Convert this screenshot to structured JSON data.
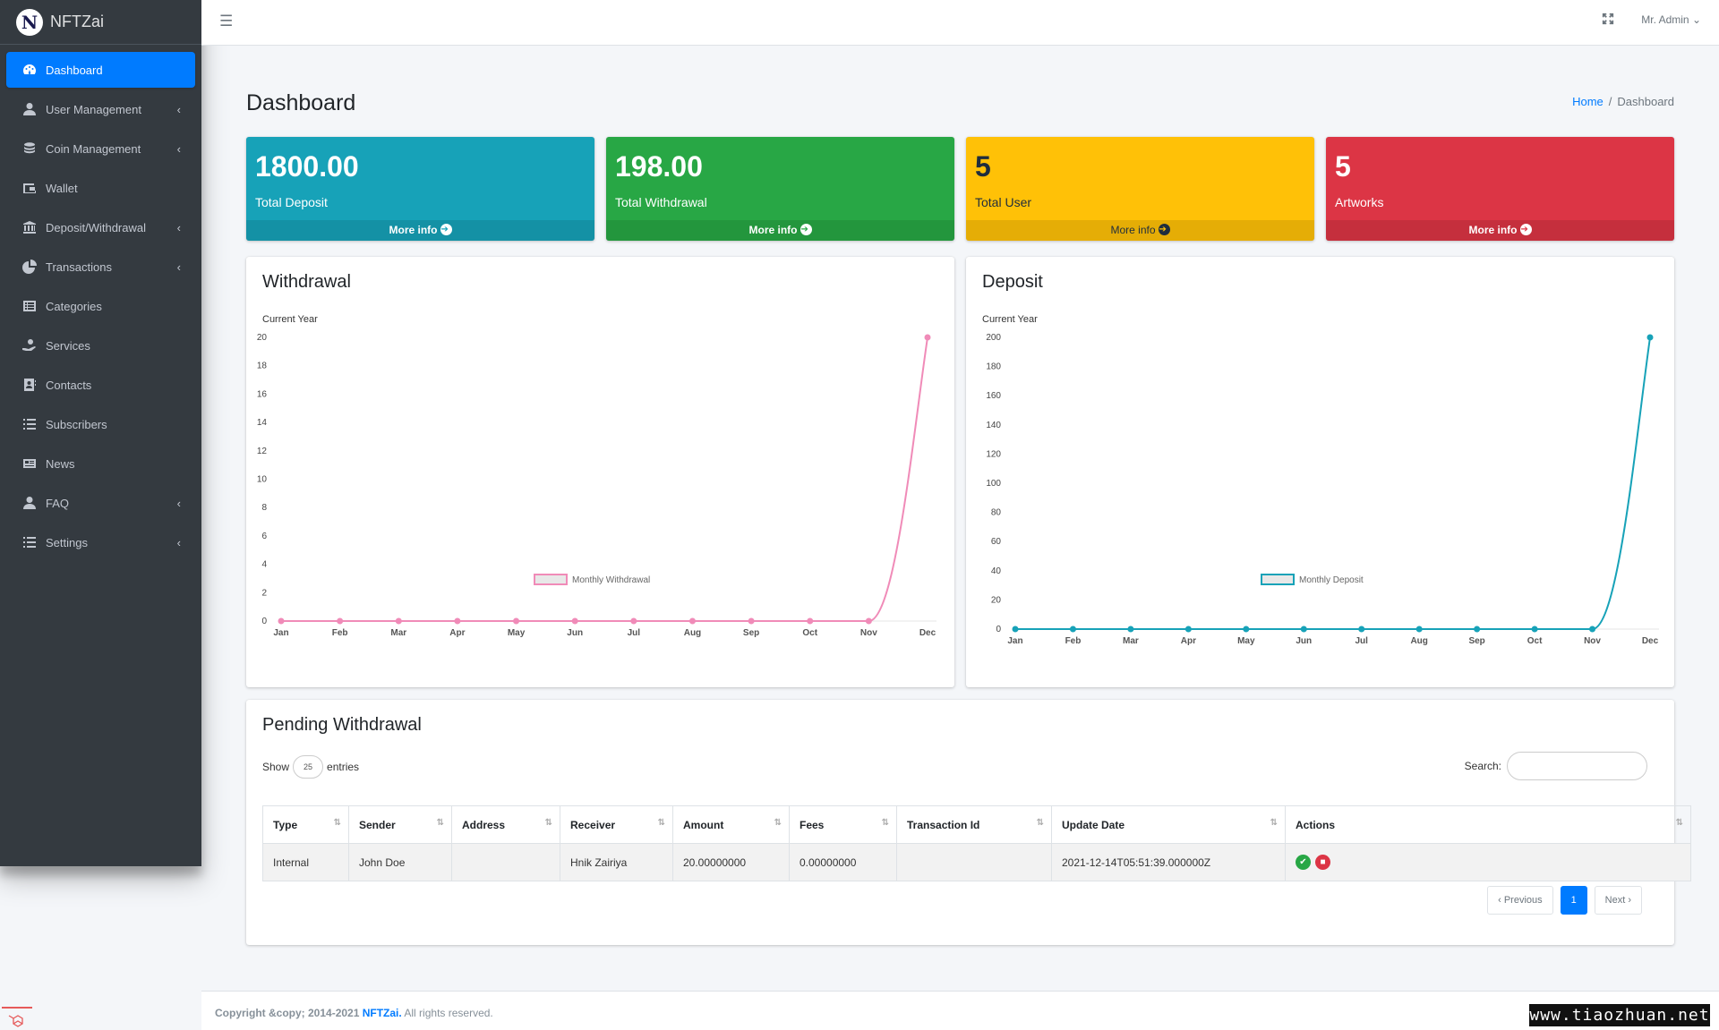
{
  "brand": {
    "name": "NFTZai",
    "logo_letter": "N"
  },
  "sidebar": {
    "items": [
      {
        "label": "Dashboard",
        "icon": "dashboard-icon",
        "active": true,
        "has_children": false
      },
      {
        "label": "User Management",
        "icon": "user-icon",
        "has_children": true
      },
      {
        "label": "Coin Management",
        "icon": "coins-icon",
        "has_children": true
      },
      {
        "label": "Wallet",
        "icon": "wallet-icon",
        "has_children": false
      },
      {
        "label": "Deposit/Withdrawal",
        "icon": "bank-icon",
        "has_children": true
      },
      {
        "label": "Transactions",
        "icon": "pie-chart-icon",
        "has_children": true
      },
      {
        "label": "Categories",
        "icon": "list-alt-icon",
        "has_children": false
      },
      {
        "label": "Services",
        "icon": "hand-holding-icon",
        "has_children": false
      },
      {
        "label": "Contacts",
        "icon": "address-book-icon",
        "has_children": false
      },
      {
        "label": "Subscribers",
        "icon": "list-icon",
        "has_children": false
      },
      {
        "label": "News",
        "icon": "newspaper-icon",
        "has_children": false
      },
      {
        "label": "FAQ",
        "icon": "user-icon",
        "has_children": true
      },
      {
        "label": "Settings",
        "icon": "list-icon",
        "has_children": true
      }
    ]
  },
  "topbar": {
    "user": "Mr. Admin"
  },
  "page": {
    "title": "Dashboard"
  },
  "breadcrumb": {
    "home": "Home",
    "current": "Dashboard"
  },
  "stats": [
    {
      "value": "1800.00",
      "label": "Total Deposit",
      "more": "More info",
      "color": "#17a2b8"
    },
    {
      "value": "198.00",
      "label": "Total Withdrawal",
      "more": "More info",
      "color": "#28a745"
    },
    {
      "value": "5",
      "label": "Total User",
      "more": "More info",
      "color": "#ffc107"
    },
    {
      "value": "5",
      "label": "Artworks",
      "more": "More info",
      "color": "#dc3545"
    }
  ],
  "charts": {
    "withdrawal_title": "Withdrawal",
    "deposit_title": "Deposit",
    "subtitle": "Current Year"
  },
  "chart_data": [
    {
      "type": "line",
      "title": "Withdrawal",
      "subtitle": "Current Year",
      "categories": [
        "Jan",
        "Feb",
        "Mar",
        "Apr",
        "May",
        "Jun",
        "Jul",
        "Aug",
        "Sep",
        "Oct",
        "Nov",
        "Dec"
      ],
      "series": [
        {
          "name": "Monthly Withdrawal",
          "values": [
            0,
            0,
            0,
            0,
            0,
            0,
            0,
            0,
            0,
            0,
            0,
            20
          ],
          "color": "#f08bb8"
        }
      ],
      "ylim": [
        0,
        20
      ],
      "yticks": [
        0,
        2,
        4,
        6,
        8,
        10,
        12,
        14,
        16,
        18,
        20
      ],
      "legend": "bottom"
    },
    {
      "type": "line",
      "title": "Deposit",
      "subtitle": "Current Year",
      "categories": [
        "Jan",
        "Feb",
        "Mar",
        "Apr",
        "May",
        "Jun",
        "Jul",
        "Aug",
        "Sep",
        "Oct",
        "Nov",
        "Dec"
      ],
      "series": [
        {
          "name": "Monthly Deposit",
          "values": [
            0,
            0,
            0,
            0,
            0,
            0,
            0,
            0,
            0,
            0,
            0,
            200
          ],
          "color": "#17a2b8"
        }
      ],
      "ylim": [
        0,
        200
      ],
      "yticks": [
        0,
        20,
        40,
        60,
        80,
        100,
        120,
        140,
        160,
        180,
        200
      ],
      "legend": "bottom"
    }
  ],
  "pending": {
    "title": "Pending Withdrawal",
    "show": "Show",
    "entries_value": "25",
    "entries": "entries",
    "search_label": "Search:",
    "columns": [
      "Type",
      "Sender",
      "Address",
      "Receiver",
      "Amount",
      "Fees",
      "Transaction Id",
      "Update Date",
      "Actions"
    ],
    "rows": [
      {
        "type": "Internal",
        "sender": "John Doe",
        "address": "",
        "receiver": "Hnik Zairiya",
        "amount": "20.00000000",
        "fees": "0.00000000",
        "txid": "",
        "date": "2021-12-14T05:51:39.000000Z"
      }
    ],
    "prev": "‹ Previous",
    "page": "1",
    "next": "Next ›"
  },
  "footer": {
    "prefix": "Copyright &copy; 2014-2021 ",
    "brand": "NFTZai.",
    "suffix": " All rights reserved."
  },
  "watermark": "www.tiaozhuan.net"
}
